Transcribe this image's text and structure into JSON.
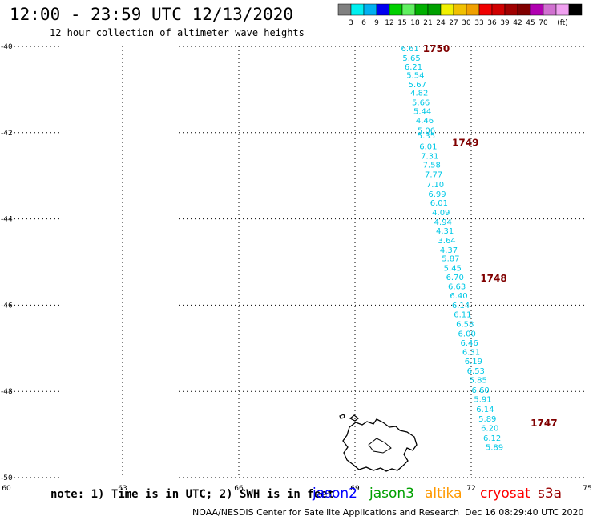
{
  "header": {
    "title": "12:00 - 23:59 UTC 12/13/2020",
    "subtitle": "12 hour collection of altimeter wave heights"
  },
  "colorbar": {
    "swatches": [
      "#808080",
      "#00f0f0",
      "#00b0f0",
      "#0000f0",
      "#00d000",
      "#60f060",
      "#00b000",
      "#00a000",
      "#f0f000",
      "#f0c000",
      "#f0a000",
      "#f00000",
      "#d00000",
      "#a00000",
      "#800000",
      "#b000b0",
      "#d070d0",
      "#f0a0f0",
      "#000000"
    ],
    "labels": [
      "3",
      "6",
      "9",
      "12",
      "15",
      "18",
      "21",
      "24",
      "27",
      "30",
      "33",
      "36",
      "39",
      "42",
      "45",
      "70",
      "(ft)"
    ]
  },
  "note": "note: 1) Time is in UTC; 2) SWH is in feet",
  "satellites": [
    {
      "name": "jason2",
      "color": "#0000ff"
    },
    {
      "name": "jason3",
      "color": "#00a000"
    },
    {
      "name": "altika",
      "color": "#ff9900"
    },
    {
      "name": "cryosat",
      "color": "#ff0000"
    },
    {
      "name": "s3a",
      "color": "#990000"
    }
  ],
  "footer": {
    "credit": "NOAA/NESDIS Center for Satellite Applications and Research",
    "stamp": "Dec 16 08:29:40 UTC 2020"
  },
  "chart_data": {
    "type": "scatter",
    "title": "12:00 - 23:59 UTC 12/13/2020",
    "xlim": [
      60,
      75
    ],
    "ylim": [
      -50,
      -40
    ],
    "x_ticks": [
      60,
      63,
      66,
      69,
      72,
      75
    ],
    "x_tick_labels": [
      "60",
      "63",
      "66",
      "69",
      "72",
      "75"
    ],
    "y_ticks": [
      -40,
      -42,
      -44,
      -46,
      -48,
      -50
    ],
    "y_tick_labels": [
      "-40",
      "-42",
      "-44",
      "-46",
      "-48",
      "-50"
    ],
    "grid": true,
    "series": [
      {
        "name": "s3a",
        "color": "#00c8e6",
        "label_color": "#800000",
        "points": [
          {
            "x": 70.42,
            "y": -40.04,
            "v": "6.61"
          },
          {
            "x": 70.46,
            "y": -40.26,
            "v": "5.65"
          },
          {
            "x": 70.51,
            "y": -40.46,
            "v": "6.21"
          },
          {
            "x": 70.56,
            "y": -40.66,
            "v": "5.54"
          },
          {
            "x": 70.61,
            "y": -40.87,
            "v": "5.67"
          },
          {
            "x": 70.66,
            "y": -41.07,
            "v": "4.82"
          },
          {
            "x": 70.7,
            "y": -41.29,
            "v": "5.66"
          },
          {
            "x": 70.74,
            "y": -41.49,
            "v": "5.44"
          },
          {
            "x": 70.8,
            "y": -41.71,
            "v": "4.46"
          },
          {
            "x": 70.84,
            "y": -41.94,
            "v": "5.06"
          },
          {
            "x": 70.84,
            "y": -42.06,
            "v": "5.35"
          },
          {
            "x": 70.89,
            "y": -42.31,
            "v": "6.01"
          },
          {
            "x": 70.93,
            "y": -42.53,
            "v": "7.31"
          },
          {
            "x": 70.98,
            "y": -42.74,
            "v": "7.58"
          },
          {
            "x": 71.03,
            "y": -42.96,
            "v": "7.77"
          },
          {
            "x": 71.07,
            "y": -43.19,
            "v": "7.10"
          },
          {
            "x": 71.12,
            "y": -43.41,
            "v": "6.99"
          },
          {
            "x": 71.17,
            "y": -43.62,
            "v": "6.01"
          },
          {
            "x": 71.22,
            "y": -43.84,
            "v": "4.09"
          },
          {
            "x": 71.27,
            "y": -44.06,
            "v": "4.94"
          },
          {
            "x": 71.32,
            "y": -44.27,
            "v": "4.31"
          },
          {
            "x": 71.37,
            "y": -44.49,
            "v": "3.64"
          },
          {
            "x": 71.42,
            "y": -44.71,
            "v": "4.37"
          },
          {
            "x": 71.47,
            "y": -44.91,
            "v": "5.87"
          },
          {
            "x": 71.52,
            "y": -45.13,
            "v": "5.45"
          },
          {
            "x": 71.58,
            "y": -45.34,
            "v": "6.70"
          },
          {
            "x": 71.63,
            "y": -45.56,
            "v": "6.63"
          },
          {
            "x": 71.68,
            "y": -45.77,
            "v": "6.40"
          },
          {
            "x": 71.73,
            "y": -45.99,
            "v": "6.14"
          },
          {
            "x": 71.78,
            "y": -46.21,
            "v": "6.11"
          },
          {
            "x": 71.84,
            "y": -46.43,
            "v": "6.58"
          },
          {
            "x": 71.89,
            "y": -46.65,
            "v": "6.00"
          },
          {
            "x": 71.95,
            "y": -46.86,
            "v": "6.46"
          },
          {
            "x": 72.0,
            "y": -47.08,
            "v": "6.31"
          },
          {
            "x": 72.06,
            "y": -47.29,
            "v": "6.19"
          },
          {
            "x": 72.12,
            "y": -47.51,
            "v": "6.53"
          },
          {
            "x": 72.18,
            "y": -47.73,
            "v": "5.85"
          },
          {
            "x": 72.24,
            "y": -47.96,
            "v": "6.60"
          },
          {
            "x": 72.3,
            "y": -48.17,
            "v": "5.91"
          },
          {
            "x": 72.36,
            "y": -48.4,
            "v": "6.14"
          },
          {
            "x": 72.42,
            "y": -48.63,
            "v": "5.89"
          },
          {
            "x": 72.48,
            "y": -48.84,
            "v": "6.20"
          },
          {
            "x": 72.54,
            "y": -49.07,
            "v": "6.12"
          },
          {
            "x": 72.6,
            "y": -49.29,
            "v": "5.89"
          }
        ],
        "time_labels": [
          {
            "x": 71.1,
            "y": -40.04,
            "t": "1750"
          },
          {
            "x": 71.85,
            "y": -42.22,
            "t": "1749"
          },
          {
            "x": 72.58,
            "y": -45.36,
            "t": "1748"
          },
          {
            "x": 73.88,
            "y": -48.72,
            "t": "1747"
          }
        ]
      }
    ]
  }
}
